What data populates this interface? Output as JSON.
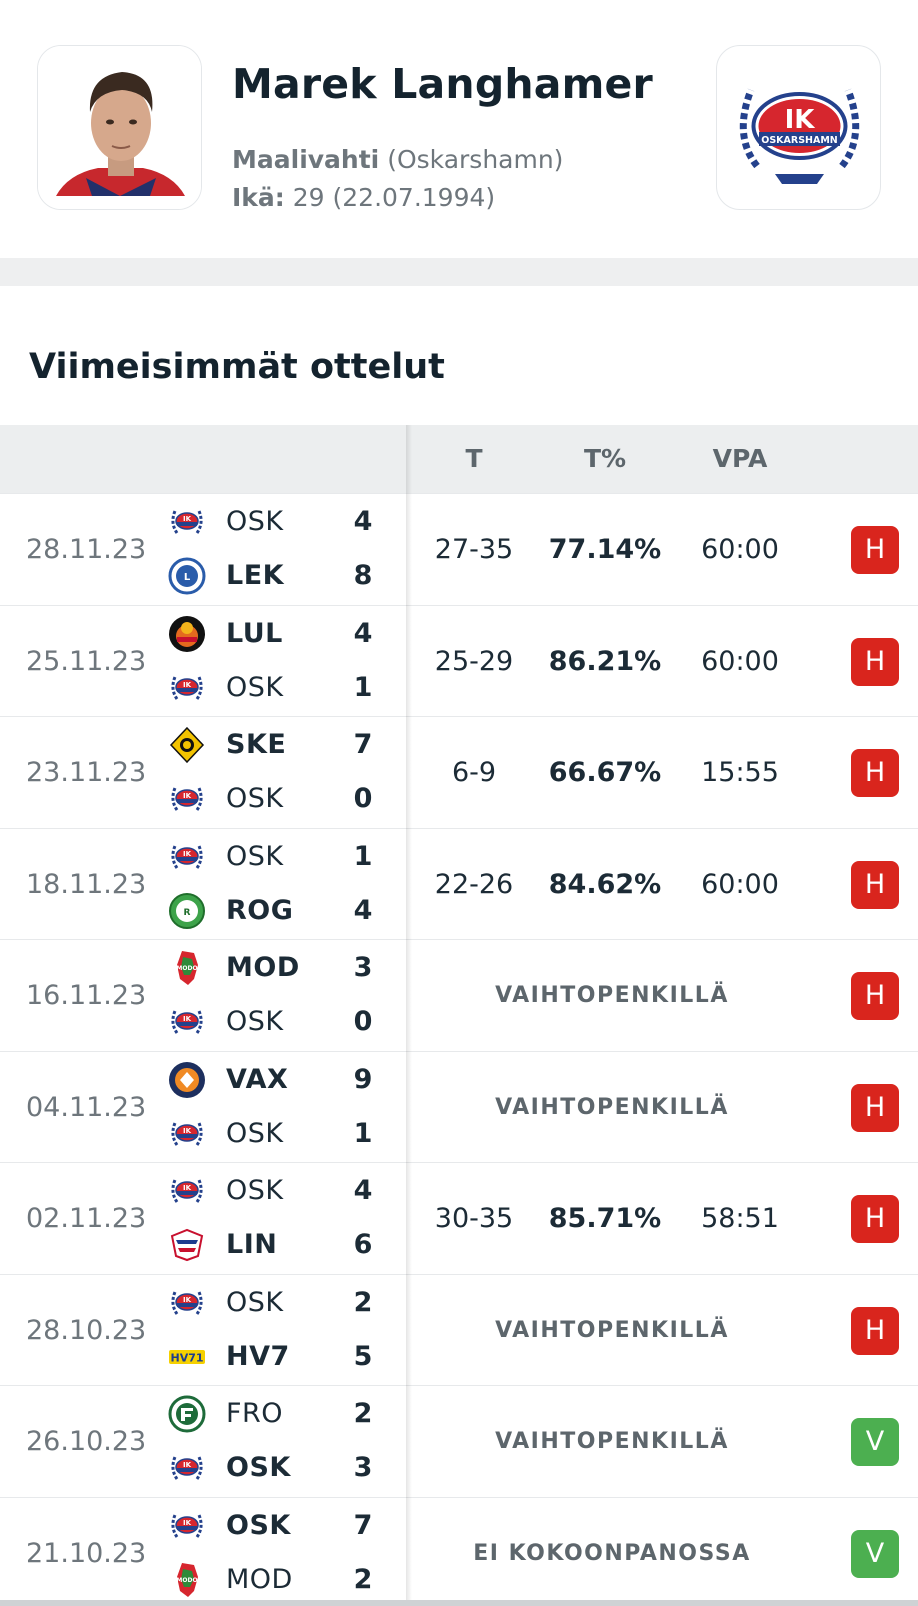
{
  "player": {
    "name": "Marek Langhamer",
    "position_label": "Maalivahti",
    "team_paren": "(Oskarshamn)",
    "age_label": "Ikä:",
    "age_value": "29 (22.07.1994)"
  },
  "team_logo": {
    "top_text": "IK",
    "bottom_text": "OSKARSHAMN"
  },
  "section_title": "Viimeisimmät ottelut",
  "columns": {
    "saves": "T",
    "save_pct": "T%",
    "toi": "VPA"
  },
  "colors": {
    "loss": "#d9251d",
    "win": "#4caf50",
    "osk_red": "#d6262e",
    "osk_blue": "#24418c"
  },
  "matches": [
    {
      "date": "28.11.23",
      "home": {
        "abbr": "OSK",
        "score": "4",
        "logo": "oskarshamn-logo"
      },
      "away": {
        "abbr": "LEK",
        "score": "8",
        "logo": "leksand-logo"
      },
      "saves": "27-35",
      "save_pct": "77.14%",
      "toi": "60:00",
      "result": "H"
    },
    {
      "date": "25.11.23",
      "home": {
        "abbr": "LUL",
        "score": "4",
        "logo": "lulea-logo"
      },
      "away": {
        "abbr": "OSK",
        "score": "1",
        "logo": "oskarshamn-logo"
      },
      "saves": "25-29",
      "save_pct": "86.21%",
      "toi": "60:00",
      "result": "H"
    },
    {
      "date": "23.11.23",
      "home": {
        "abbr": "SKE",
        "score": "7",
        "logo": "skelleftea-logo"
      },
      "away": {
        "abbr": "OSK",
        "score": "0",
        "logo": "oskarshamn-logo"
      },
      "saves": "6-9",
      "save_pct": "66.67%",
      "toi": "15:55",
      "result": "H"
    },
    {
      "date": "18.11.23",
      "home": {
        "abbr": "OSK",
        "score": "1",
        "logo": "oskarshamn-logo"
      },
      "away": {
        "abbr": "ROG",
        "score": "4",
        "logo": "rogle-logo"
      },
      "saves": "22-26",
      "save_pct": "84.62%",
      "toi": "60:00",
      "result": "H"
    },
    {
      "date": "16.11.23",
      "home": {
        "abbr": "MOD",
        "score": "3",
        "logo": "modo-logo"
      },
      "away": {
        "abbr": "OSK",
        "score": "0",
        "logo": "oskarshamn-logo"
      },
      "bench_text": "VAIHTOPENKILLÄ",
      "result": "H"
    },
    {
      "date": "04.11.23",
      "home": {
        "abbr": "VAX",
        "score": "9",
        "logo": "vaxjo-logo"
      },
      "away": {
        "abbr": "OSK",
        "score": "1",
        "logo": "oskarshamn-logo"
      },
      "bench_text": "VAIHTOPENKILLÄ",
      "result": "H"
    },
    {
      "date": "02.11.23",
      "home": {
        "abbr": "OSK",
        "score": "4",
        "logo": "oskarshamn-logo"
      },
      "away": {
        "abbr": "LIN",
        "score": "6",
        "logo": "linkoping-logo"
      },
      "saves": "30-35",
      "save_pct": "85.71%",
      "toi": "58:51",
      "result": "H"
    },
    {
      "date": "28.10.23",
      "home": {
        "abbr": "OSK",
        "score": "2",
        "logo": "oskarshamn-logo"
      },
      "away": {
        "abbr": "HV7",
        "score": "5",
        "logo": "hv71-logo"
      },
      "bench_text": "VAIHTOPENKILLÄ",
      "result": "H"
    },
    {
      "date": "26.10.23",
      "home": {
        "abbr": "FRO",
        "score": "2",
        "logo": "frolunda-logo"
      },
      "away": {
        "abbr": "OSK",
        "score": "3",
        "logo": "oskarshamn-logo"
      },
      "bench_text": "VAIHTOPENKILLÄ",
      "result": "V"
    },
    {
      "date": "21.10.23",
      "home": {
        "abbr": "OSK",
        "score": "7",
        "logo": "oskarshamn-logo"
      },
      "away": {
        "abbr": "MOD",
        "score": "2",
        "logo": "modo-logo"
      },
      "bench_text": "EI KOKOONPANOSSA",
      "result": "V"
    }
  ]
}
